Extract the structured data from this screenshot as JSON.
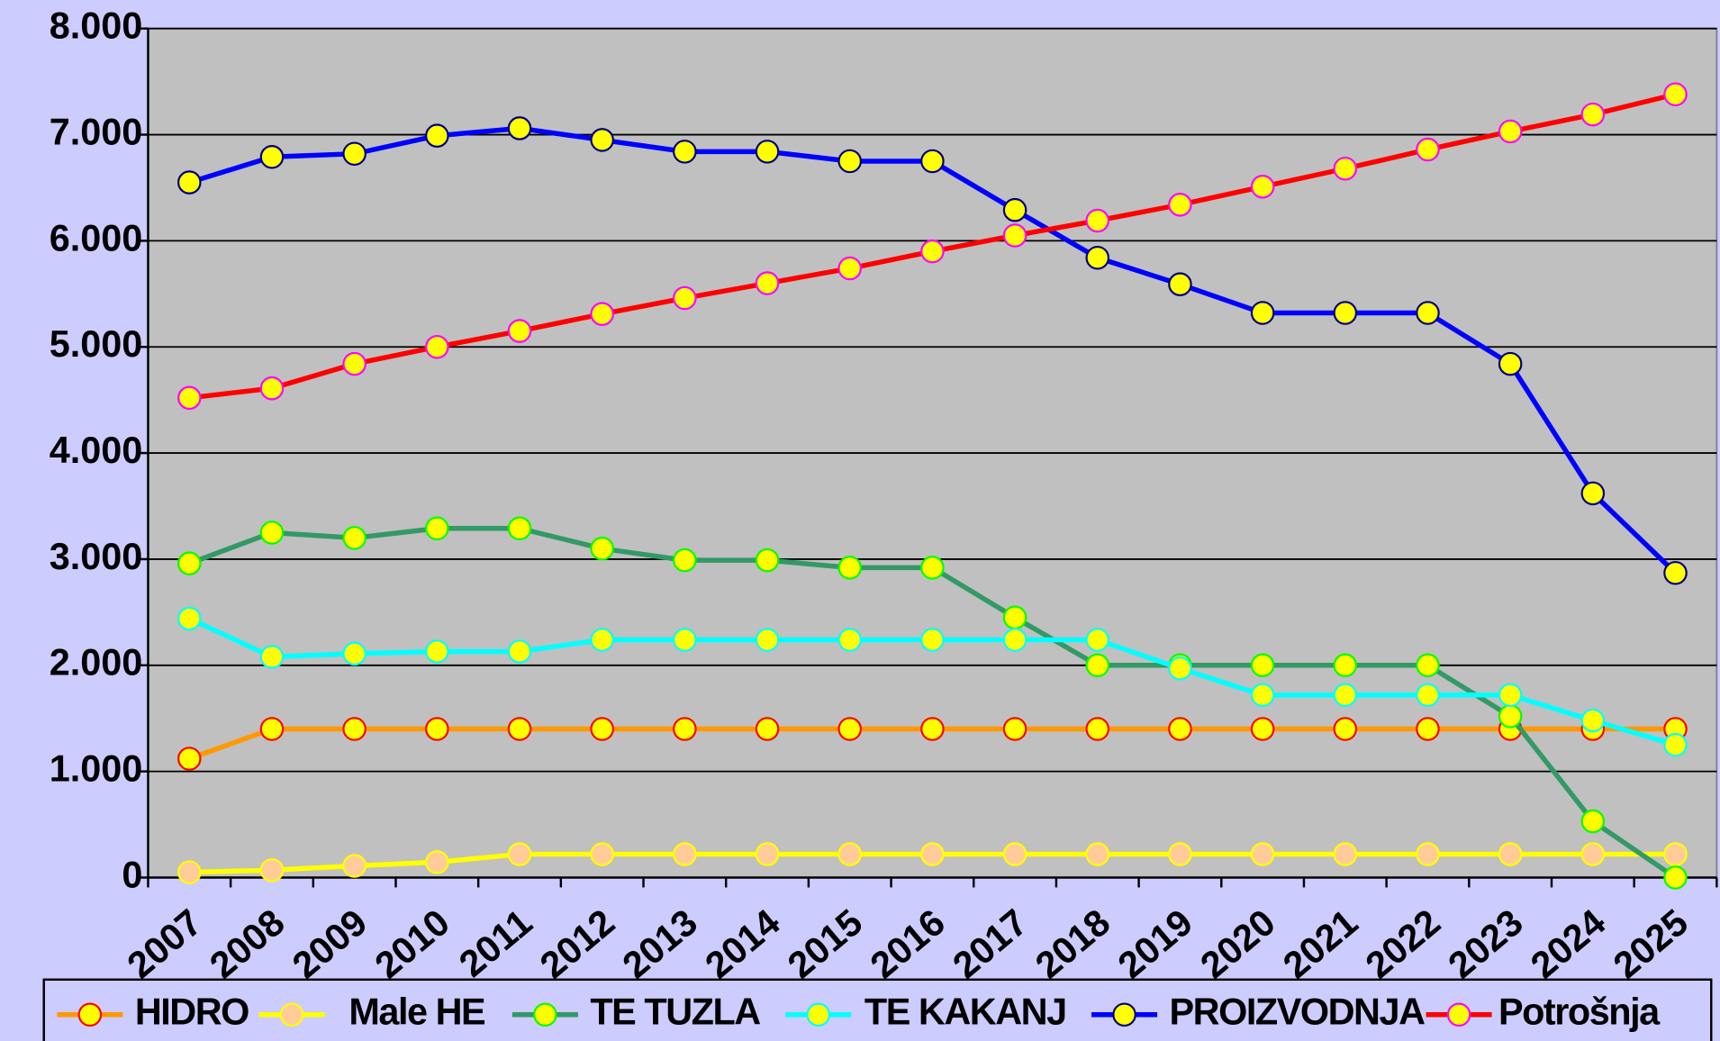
{
  "chart_data": {
    "type": "line",
    "categories": [
      "2007",
      "2008",
      "2009",
      "2010",
      "2011",
      "2012",
      "2013",
      "2014",
      "2015",
      "2016",
      "2017",
      "2018",
      "2019",
      "2020",
      "2021",
      "2022",
      "2023",
      "2024",
      "2025"
    ],
    "ylim": [
      0,
      8000
    ],
    "yticks": [
      0,
      {
        "value": 1000,
        "label": "1.000"
      },
      {
        "value": 2000,
        "label": "2.000"
      },
      {
        "value": 3000,
        "label": "3.000"
      },
      {
        "value": 4000,
        "label": "4.000"
      },
      {
        "value": 5000,
        "label": "5.000"
      },
      {
        "value": 6000,
        "label": "6.000"
      },
      {
        "value": 7000,
        "label": "7.000"
      },
      {
        "value": 8000,
        "label": "8.000"
      }
    ],
    "grid": true,
    "legend": "bottom",
    "series": [
      {
        "name": "HIDRO",
        "color": "#ff9900",
        "marker_fill": "#ffff00",
        "marker_edge": "#ff0000",
        "values": [
          1120,
          1400,
          1400,
          1400,
          1400,
          1400,
          1400,
          1400,
          1400,
          1400,
          1400,
          1400,
          1400,
          1400,
          1400,
          1400,
          1400,
          1400,
          1400
        ]
      },
      {
        "name": "Male HE",
        "color": "#ffff00",
        "marker_fill": "#ffcc99",
        "marker_edge": "#ffff00",
        "values": [
          50,
          70,
          110,
          145,
          220,
          220,
          220,
          220,
          220,
          220,
          220,
          220,
          220,
          220,
          220,
          220,
          220,
          220,
          220
        ]
      },
      {
        "name": "TE TUZLA",
        "color": "#339966",
        "marker_fill": "#ffff00",
        "marker_edge": "#00ff00",
        "values": [
          2960,
          3250,
          3200,
          3290,
          3290,
          3100,
          2990,
          2990,
          2920,
          2920,
          2450,
          2000,
          2000,
          2000,
          2000,
          2000,
          1520,
          530,
          0
        ]
      },
      {
        "name": "TE KAKANJ",
        "color": "#00ffff",
        "marker_fill": "#ffff00",
        "marker_edge": "#00ffff",
        "values": [
          2440,
          2080,
          2110,
          2130,
          2130,
          2240,
          2240,
          2240,
          2240,
          2240,
          2240,
          2240,
          1970,
          1720,
          1720,
          1720,
          1720,
          1480,
          1250
        ]
      },
      {
        "name": "PROIZVODNJA",
        "color": "#0000ff",
        "marker_fill": "#ffff00",
        "marker_edge": "#000080",
        "values": [
          6550,
          6790,
          6820,
          6990,
          7060,
          6950,
          6840,
          6840,
          6750,
          6750,
          6290,
          5840,
          5590,
          5320,
          5320,
          5320,
          4840,
          3620,
          2870
        ]
      },
      {
        "name": "Potrošnja",
        "color": "#ff0000",
        "marker_fill": "#ffff00",
        "marker_edge": "#ff00ff",
        "values": [
          4520,
          4610,
          4840,
          5000,
          5150,
          5310,
          5460,
          5600,
          5740,
          5900,
          6050,
          6190,
          6340,
          6510,
          6680,
          6860,
          7030,
          7190,
          7380
        ]
      }
    ]
  }
}
